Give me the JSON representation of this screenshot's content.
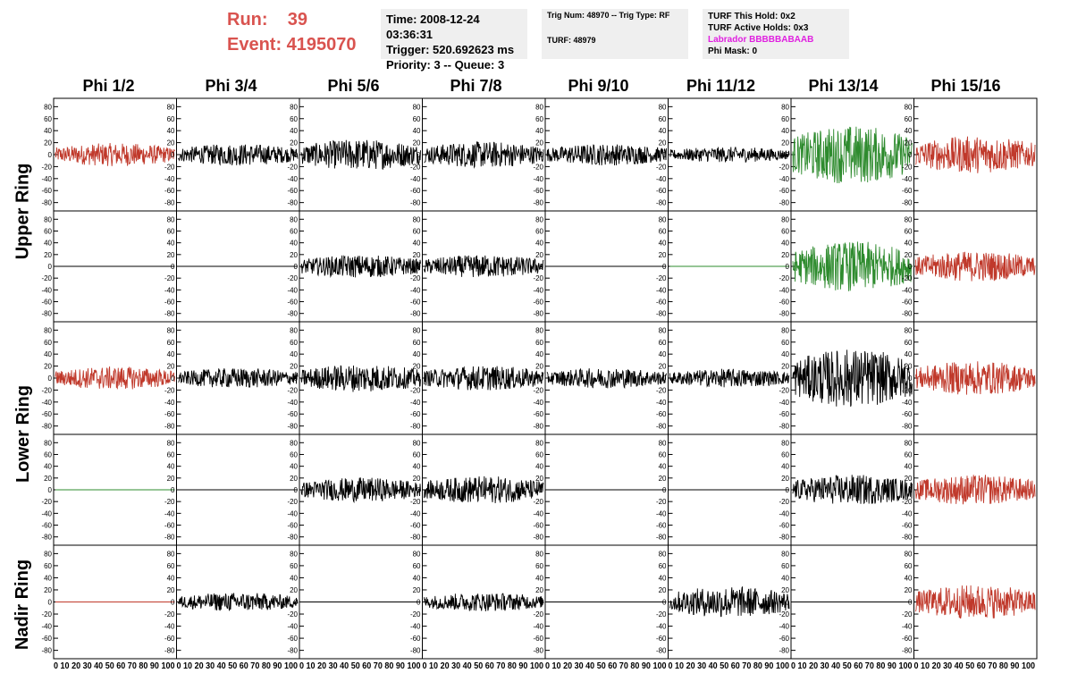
{
  "run": {
    "run_label": "Run:    39",
    "event_label": "Event: 4195070",
    "run_number": 39,
    "event_number": 4195070
  },
  "time_box": {
    "time": "Time: 2008-12-24 03:36:31",
    "trigger": "Trigger: 520.692623 ms",
    "priority": "Priority: 3 -- Queue: 3"
  },
  "trig_box": {
    "trig_line": "Trig Num: 48970 -- Trig Type: RF",
    "turf_line": "TURF: 48979"
  },
  "turf_box": {
    "this_hold": "TURF This Hold: 0x2",
    "active_holds": "TURF Active Holds: 0x3",
    "labrador": "Labrador BBBBBABAAB",
    "phi_mask": "Phi Mask: 0"
  },
  "columns": [
    "Phi 1/2",
    "Phi 3/4",
    "Phi 5/6",
    "Phi 7/8",
    "Phi 9/10",
    "Phi 11/12",
    "Phi 13/14",
    "Phi 15/16"
  ],
  "rings": [
    "Upper Ring",
    "Lower Ring",
    "Nadir Ring"
  ],
  "axes": {
    "ylim": [
      -85,
      85
    ],
    "xlim": [
      0,
      100
    ],
    "y_ticks": [
      "80",
      "60",
      "40",
      "20",
      "0",
      "-20",
      "-40",
      "-60",
      "-80"
    ],
    "x_tick_label_strip": "0 10 20 30 40 50 60 70 80 90 100"
  },
  "colors": {
    "red": "#c0392b",
    "green": "#2e8b2e",
    "black": "#000000",
    "run_text": "#d9534f",
    "labrador": "#e020e0",
    "info_box_bg": "#efefef"
  },
  "chart_data": {
    "type": "line",
    "description_units": "amplitude vs sample index (0-100)",
    "rows": [
      {
        "name": "Upper Ring row 1",
        "channels": [
          {
            "col": "Phi 1/2",
            "color": "red",
            "amplitude": 15
          },
          {
            "col": "Phi 3/4",
            "color": "black",
            "amplitude": 14
          },
          {
            "col": "Phi 5/6",
            "color": "black",
            "amplitude": 20
          },
          {
            "col": "Phi 7/8",
            "color": "black",
            "amplitude": 17
          },
          {
            "col": "Phi 9/10",
            "color": "black",
            "amplitude": 14
          },
          {
            "col": "Phi 11/12",
            "color": "black",
            "amplitude": 10
          },
          {
            "col": "Phi 13/14",
            "color": "green",
            "amplitude": 38
          },
          {
            "col": "Phi 15/16",
            "color": "red",
            "amplitude": 24
          }
        ]
      },
      {
        "name": "Upper Ring row 2",
        "channels": [
          {
            "col": "Phi 1/2",
            "color": "black",
            "amplitude": 0
          },
          {
            "col": "Phi 3/4",
            "color": "black",
            "amplitude": 0
          },
          {
            "col": "Phi 5/6",
            "color": "black",
            "amplitude": 15
          },
          {
            "col": "Phi 7/8",
            "color": "black",
            "amplitude": 15
          },
          {
            "col": "Phi 9/10",
            "color": "black",
            "amplitude": 0
          },
          {
            "col": "Phi 11/12",
            "color": "green",
            "amplitude": 0
          },
          {
            "col": "Phi 13/14",
            "color": "green",
            "amplitude": 33
          },
          {
            "col": "Phi 15/16",
            "color": "red",
            "amplitude": 20
          }
        ]
      },
      {
        "name": "Lower Ring row 1",
        "channels": [
          {
            "col": "Phi 1/2",
            "color": "red",
            "amplitude": 15
          },
          {
            "col": "Phi 3/4",
            "color": "black",
            "amplitude": 13
          },
          {
            "col": "Phi 5/6",
            "color": "black",
            "amplitude": 18
          },
          {
            "col": "Phi 7/8",
            "color": "black",
            "amplitude": 16
          },
          {
            "col": "Phi 9/10",
            "color": "black",
            "amplitude": 13
          },
          {
            "col": "Phi 11/12",
            "color": "black",
            "amplitude": 12
          },
          {
            "col": "Phi 13/14",
            "color": "black",
            "amplitude": 38
          },
          {
            "col": "Phi 15/16",
            "color": "red",
            "amplitude": 22
          }
        ]
      },
      {
        "name": "Lower Ring row 2",
        "channels": [
          {
            "col": "Phi 1/2",
            "color": "green",
            "amplitude": 0
          },
          {
            "col": "Phi 3/4",
            "color": "black",
            "amplitude": 0
          },
          {
            "col": "Phi 5/6",
            "color": "black",
            "amplitude": 16
          },
          {
            "col": "Phi 7/8",
            "color": "black",
            "amplitude": 18
          },
          {
            "col": "Phi 9/10",
            "color": "black",
            "amplitude": 0
          },
          {
            "col": "Phi 11/12",
            "color": "black",
            "amplitude": 0
          },
          {
            "col": "Phi 13/14",
            "color": "black",
            "amplitude": 20
          },
          {
            "col": "Phi 15/16",
            "color": "red",
            "amplitude": 20
          }
        ]
      },
      {
        "name": "Nadir Ring",
        "channels": [
          {
            "col": "Phi 1/2",
            "color": "red",
            "amplitude": 0
          },
          {
            "col": "Phi 3/4",
            "color": "black",
            "amplitude": 12
          },
          {
            "col": "Phi 5/6",
            "color": "black",
            "amplitude": 0
          },
          {
            "col": "Phi 7/8",
            "color": "black",
            "amplitude": 12
          },
          {
            "col": "Phi 9/10",
            "color": "black",
            "amplitude": 0
          },
          {
            "col": "Phi 11/12",
            "color": "black",
            "amplitude": 20
          },
          {
            "col": "Phi 13/14",
            "color": "black",
            "amplitude": 0
          },
          {
            "col": "Phi 15/16",
            "color": "red",
            "amplitude": 22
          }
        ]
      }
    ]
  }
}
